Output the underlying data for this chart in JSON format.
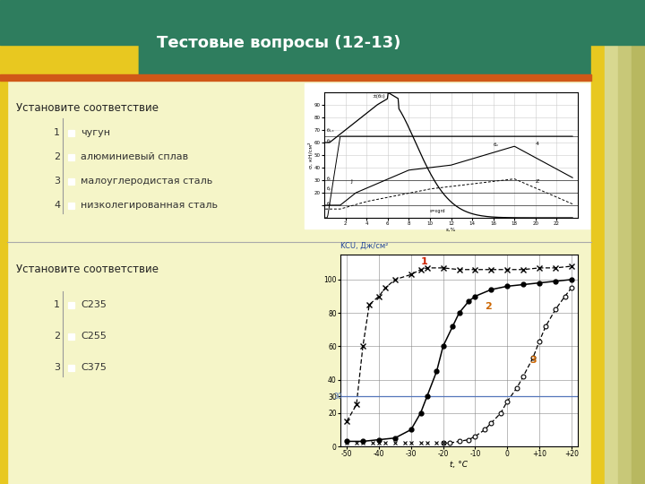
{
  "title": "Тестовые вопросы (12-13)",
  "bg_color": "#f5f5c8",
  "header_color": "#2e7d5e",
  "header_text_color": "#ffffff",
  "yellow_accent": "#e8c820",
  "orange_accent": "#d05818",
  "stripe1": "#d8d890",
  "stripe2": "#c8c878",
  "stripe3": "#b8b860",
  "section1_title": "Установите соответствие",
  "section1_items": [
    {
      "num": "1",
      "text": "чугун"
    },
    {
      "num": "2",
      "text": "алюминиевый сплав"
    },
    {
      "num": "3",
      "text": "малоуглеродистая сталь"
    },
    {
      "num": "4",
      "text": "низколегированная сталь"
    }
  ],
  "section2_title": "Установите соответствие",
  "section2_items": [
    {
      "num": "1",
      "text": "С235"
    },
    {
      "num": "2",
      "text": "С255"
    },
    {
      "num": "3",
      "text": "С375"
    }
  ],
  "chart2_ylabel": "KCU, Дж/см²",
  "chart2_xlabel": "t, °C",
  "label_color_1": "#cc2200",
  "label_color_23": "#cc6600",
  "ref_line_color": "#5577bb",
  "separator_color": "#aaaaaa",
  "checkbox_color": "#222222"
}
